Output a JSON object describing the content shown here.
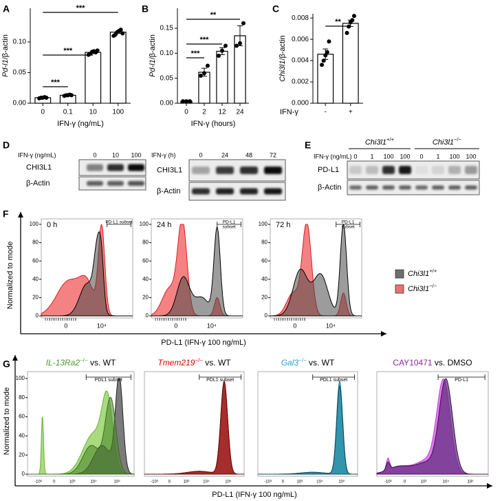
{
  "figure": {
    "panel_letters": [
      "A",
      "B",
      "C",
      "D",
      "E",
      "F",
      "G"
    ]
  },
  "chart_data": [
    {
      "type": "bar",
      "ylabel_italic": "Pd-l1",
      "ylabel": "/β-actin",
      "xlabel": "IFN-γ (ng/mL)",
      "categories": [
        "0",
        "0.1",
        "10",
        "100"
      ],
      "values": [
        0.009,
        0.013,
        0.083,
        0.116
      ],
      "errors": [
        0.0005,
        0.0007,
        0.002,
        0.002
      ],
      "points": [
        [
          0.008,
          0.009,
          0.009,
          0.01,
          0.009
        ],
        [
          0.012,
          0.013,
          0.013,
          0.014,
          0.013
        ],
        [
          0.079,
          0.081,
          0.084,
          0.085,
          0.083,
          0.086
        ],
        [
          0.11,
          0.112,
          0.116,
          0.118,
          0.12,
          0.114
        ]
      ],
      "ylim": [
        0,
        0.155
      ],
      "yticks": [
        {
          "value": 0,
          "label": "0.00"
        },
        {
          "value": 0.05,
          "label": "0.05"
        },
        {
          "value": 0.1,
          "label": "0.10"
        }
      ],
      "annotations": [
        "***",
        "***",
        "***"
      ]
    },
    {
      "type": "bar",
      "ylabel_italic": "Pd-l1",
      "ylabel": "/β-actin",
      "xlabel": "IFN-γ (hours)",
      "categories": [
        "0",
        "2",
        "12",
        "24"
      ],
      "values": [
        0.004,
        0.062,
        0.104,
        0.135
      ],
      "errors": [
        0.001,
        0.008,
        0.007,
        0.02
      ],
      "points": [
        [
          0.004,
          0.004,
          0.004
        ],
        [
          0.055,
          0.06,
          0.075
        ],
        [
          0.095,
          0.105,
          0.115
        ],
        [
          0.115,
          0.12,
          0.16
        ]
      ],
      "ylim": [
        0,
        0.19
      ],
      "yticks": [
        {
          "value": 0,
          "label": "0.00"
        },
        {
          "value": 0.05,
          "label": "0.05"
        },
        {
          "value": 0.1,
          "label": "0.10"
        },
        {
          "value": 0.15,
          "label": "0.15"
        }
      ],
      "annotations": [
        "***",
        "***",
        "**"
      ]
    },
    {
      "type": "bar",
      "ylabel_italic": "Chi3l1",
      "ylabel": "/β-actin",
      "xlabel": "IFN-γ",
      "categories": [
        "-",
        "+"
      ],
      "values": [
        0.0046,
        0.0075
      ],
      "errors": [
        0.0005,
        0.0003
      ],
      "points": [
        [
          0.0036,
          0.004,
          0.0045,
          0.0048,
          0.0058
        ],
        [
          0.0066,
          0.0072,
          0.0076,
          0.0078,
          0.0082
        ]
      ],
      "ylim": [
        0,
        0.0084
      ],
      "yticks": [
        {
          "value": 0,
          "label": "0.000"
        },
        {
          "value": 0.002,
          "label": "0.002"
        },
        {
          "value": 0.004,
          "label": "0.004"
        },
        {
          "value": 0.006,
          "label": "0.006"
        },
        {
          "value": 0.008,
          "label": "0.008"
        }
      ],
      "annotations": [
        "**"
      ]
    }
  ],
  "blots": {
    "d_left": {
      "treatment": "IFN-γ (ng/mL)",
      "lanes": [
        "0",
        "10",
        "100"
      ],
      "rows": [
        "CHI3L1",
        "β-Actin"
      ]
    },
    "d_right": {
      "treatment": "IFN-γ (h)",
      "lanes": [
        "0",
        "24",
        "48",
        "72"
      ],
      "rows": [
        "CHI3L1",
        "β-Actin"
      ]
    },
    "e": {
      "groups": [
        {
          "name": "Chi3l1",
          "sup": "+/+"
        },
        {
          "name": "Chi3l1",
          "sup": "−/−"
        }
      ],
      "treatment": "IFN-γ (ng/mL)",
      "lanes": [
        "0",
        "1",
        "100",
        "100",
        "0",
        "1",
        "100",
        "100"
      ],
      "rows": [
        "PD-L1",
        "β-Actin"
      ]
    }
  },
  "flow_f": {
    "ylabel": "Normalized to mode",
    "xlabel": "PD-L1 (IFN-γ 100 ng/mL)",
    "ylim": [
      0,
      100
    ],
    "yticks": [
      0,
      20,
      40,
      60,
      80,
      100
    ],
    "xtick_labels": [
      "0",
      "10⁴"
    ],
    "panels": [
      {
        "label": "0 h",
        "gate": [
          "PD-L1 subset"
        ]
      },
      {
        "label": "24 h",
        "gate": [
          "PD-L1",
          "subset"
        ]
      },
      {
        "label": "72 h",
        "gate": [
          "PD-L1",
          "subset"
        ]
      }
    ],
    "legend": [
      {
        "name": "Chi3l1",
        "sup": "+/+",
        "color": "#6e6e6e"
      },
      {
        "name": "Chi3l1",
        "sup": "−/−",
        "color": "#f07070"
      }
    ]
  },
  "flow_g": {
    "ylabel": "Normalized to mode",
    "xlabel": "PD-L1 (IFN-γ 100 ng/mL)",
    "ylim": [
      0,
      100
    ],
    "yticks": [
      0,
      20,
      40,
      60,
      80,
      100
    ],
    "xtick_labels": [
      "-10³",
      "0",
      "10³",
      "10⁴",
      "10⁵"
    ],
    "panels": [
      {
        "title": {
          "name": "IL-13Ra2",
          "sup": "−/−",
          "rest": " vs. WT",
          "color": "#4a9a2a",
          "italic": true
        },
        "gate": "PDL1 subset"
      },
      {
        "title": {
          "name": "Tmem219",
          "sup": "−/−",
          "rest": " vs. WT",
          "color": "#e00000",
          "italic": true
        },
        "gate": "PDL1 subset"
      },
      {
        "title": {
          "name": "Gal3",
          "sup": "−/−",
          "rest": " vs. WT",
          "color": "#2aa0c8",
          "italic": true
        },
        "gate": "PDL1 subset"
      },
      {
        "title": {
          "name": "CAY10471",
          "rest": " vs. DMSO",
          "color": "#8a2a9a",
          "italic": false
        },
        "gate": "PD-L1"
      }
    ]
  }
}
